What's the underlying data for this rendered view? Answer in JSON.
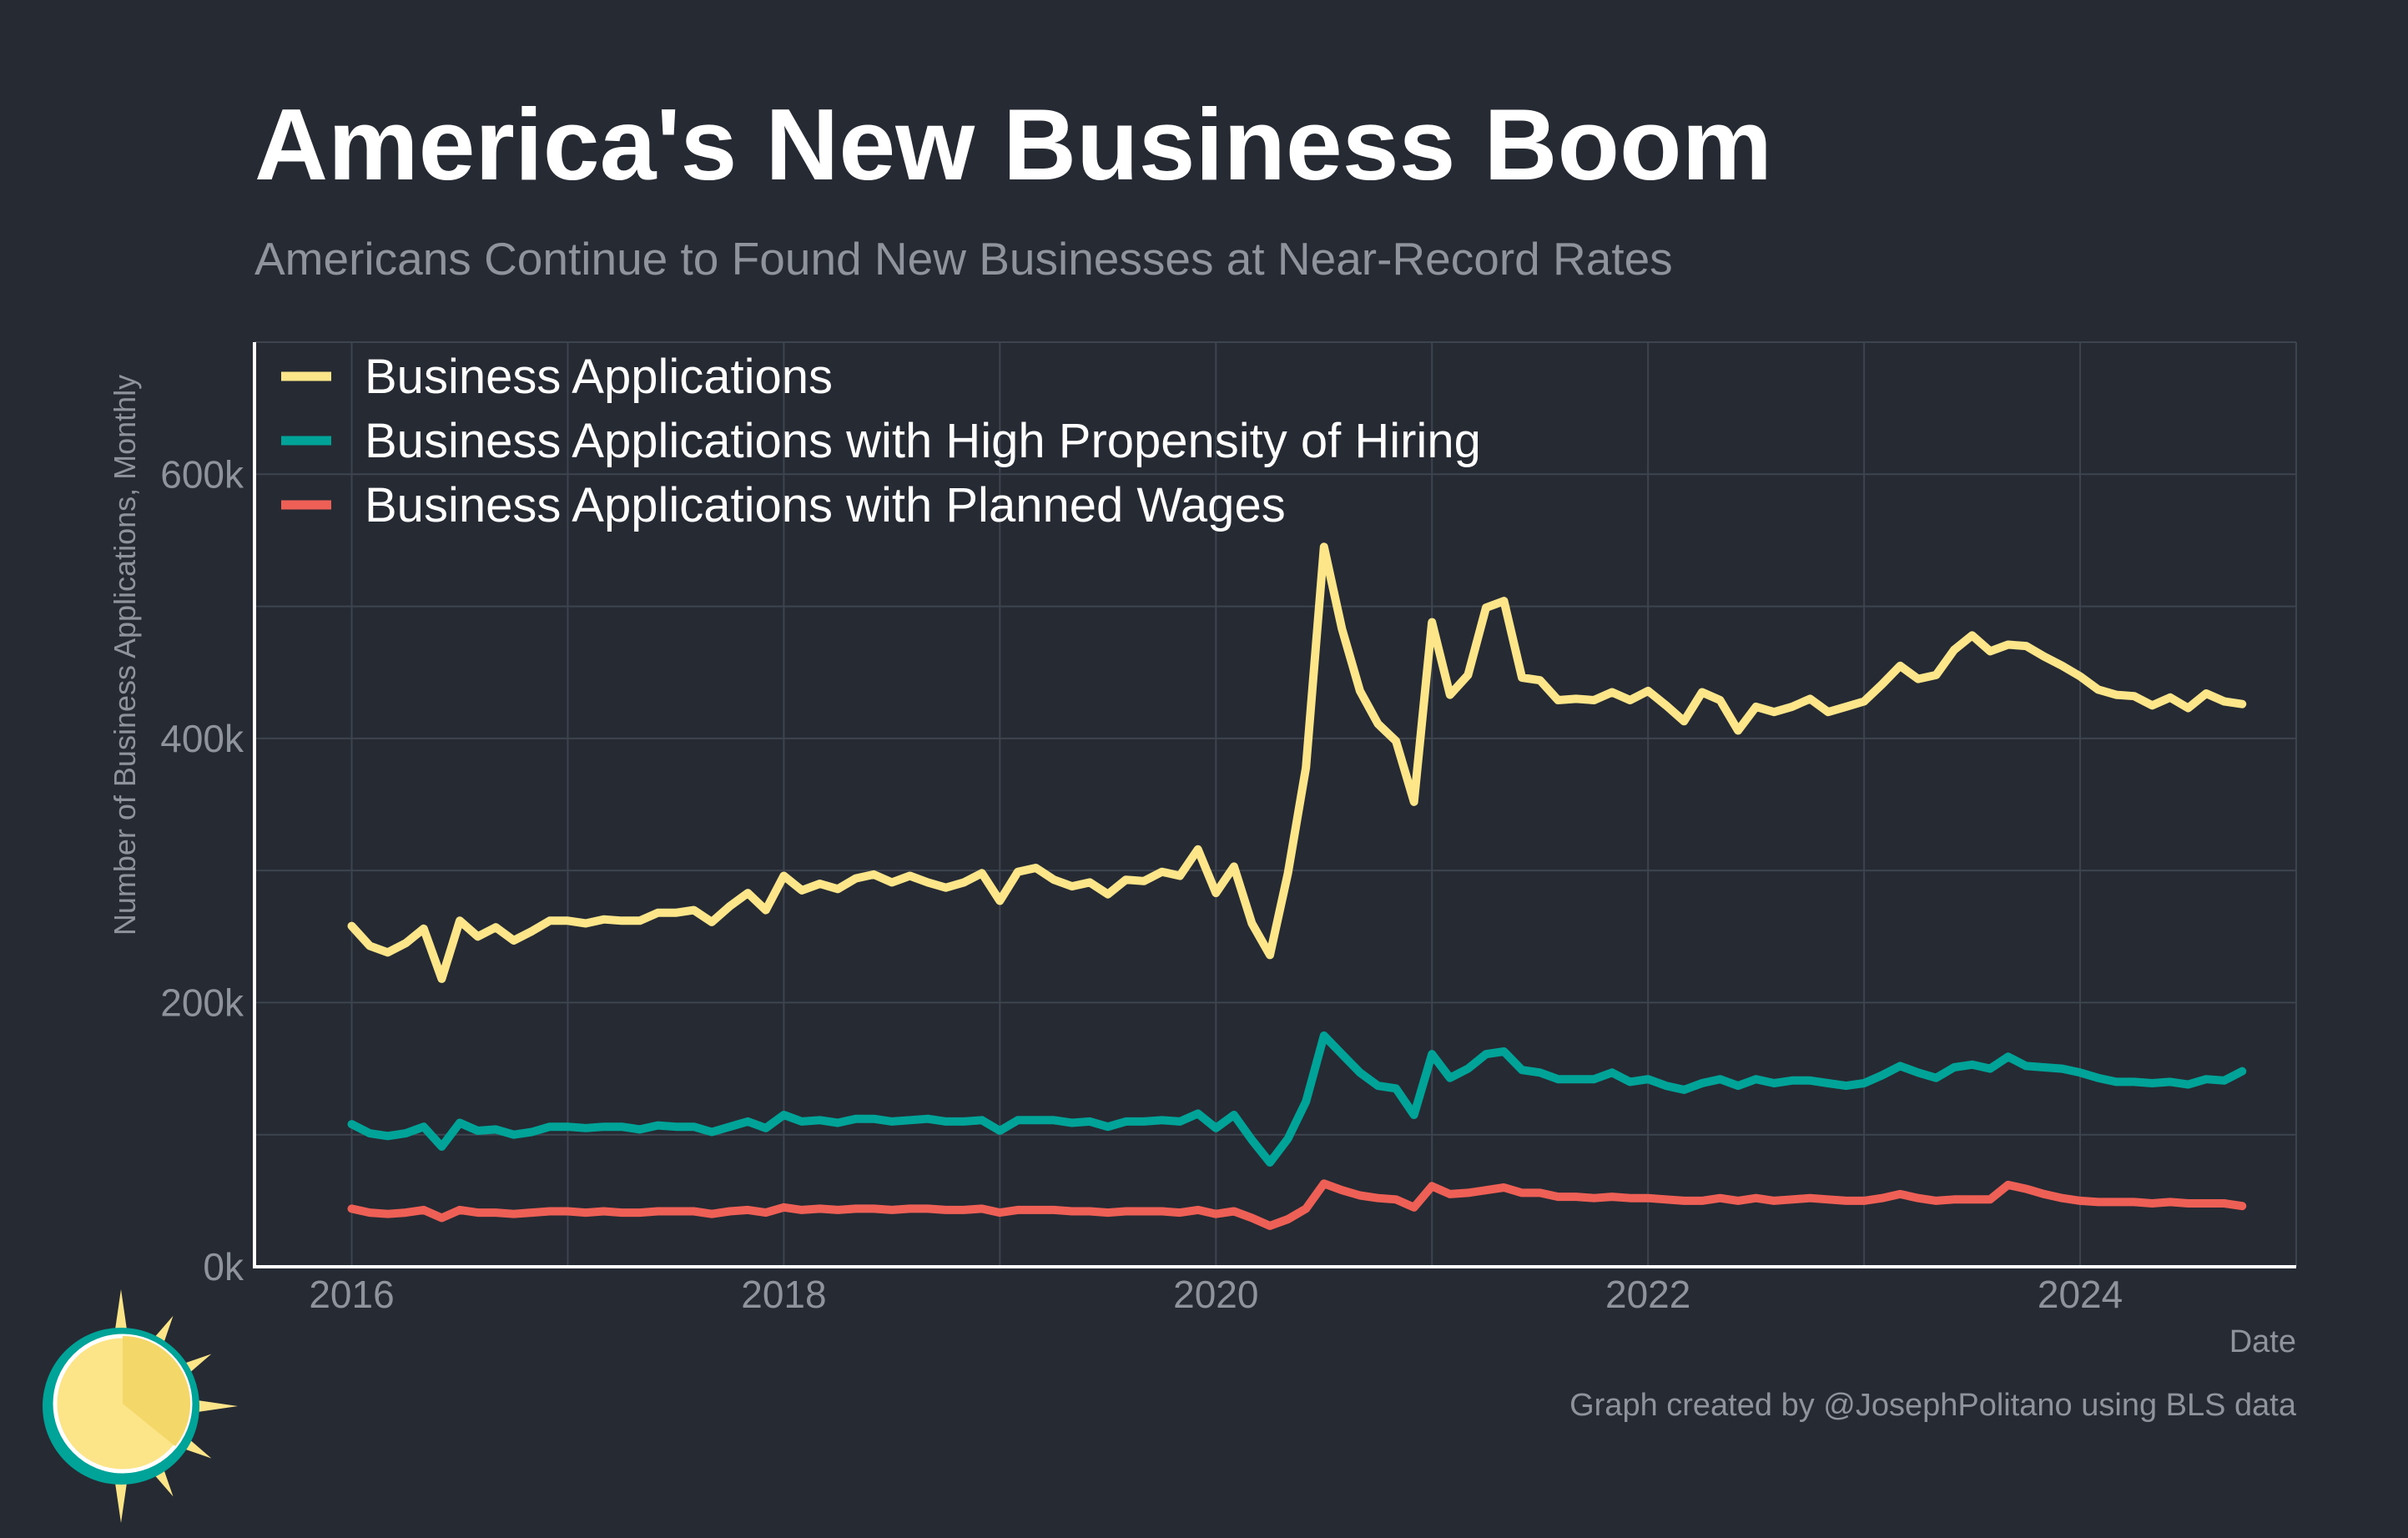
{
  "header": {
    "title": "America's New Business Boom",
    "subtitle": "Americans Continue to Found New Businesses at Near-Record Rates"
  },
  "footer": {
    "caption": "Graph created by @JosephPolitano using BLS data"
  },
  "colors": {
    "background": "#252a33",
    "grid": "#3e444e",
    "axis": "#ffffff",
    "tick_text": "#8f949c",
    "business_applications": "#fde68a",
    "high_propensity": "#00a398",
    "planned_wages": "#ee6055",
    "logo_sun": "#fce489",
    "logo_ring": "#00a398"
  },
  "logo": {
    "icon": "sun-logo-icon"
  },
  "chart_data": {
    "type": "line",
    "title": "America's New Business Boom",
    "subtitle": "Americans Continue to Found New Businesses at Near-Record Rates",
    "xlabel": "Date",
    "ylabel": "Number of Business Applications, Monthly",
    "x_start": "2016-01",
    "x_frequency": "monthly",
    "xlim": [
      2015.55,
      2025.0
    ],
    "ylim": [
      0,
      700000
    ],
    "x_ticks": [
      2016,
      2018,
      2020,
      2022,
      2024
    ],
    "x_tick_labels": [
      "2016",
      "2018",
      "2020",
      "2022",
      "2024"
    ],
    "y_ticks": [
      0,
      200000,
      400000,
      600000
    ],
    "y_tick_labels": [
      "0k",
      "200k",
      "400k",
      "600k"
    ],
    "grid": true,
    "legend_position": "top-left",
    "series": [
      {
        "name": "Business Applications",
        "color": "#fde68a",
        "values": [
          258000,
          243000,
          238000,
          245000,
          256000,
          218000,
          262000,
          250000,
          257000,
          247000,
          254000,
          262000,
          262000,
          260000,
          263000,
          262000,
          262000,
          268000,
          268000,
          270000,
          261000,
          273000,
          283000,
          270000,
          296000,
          285000,
          290000,
          286000,
          294000,
          297000,
          291000,
          296000,
          291000,
          287000,
          291000,
          298000,
          277000,
          299000,
          302000,
          293000,
          288000,
          291000,
          282000,
          293000,
          292000,
          299000,
          296000,
          316000,
          283000,
          303000,
          260000,
          236000,
          298000,
          378000,
          545000,
          483000,
          436000,
          411000,
          398000,
          352000,
          488000,
          433000,
          448000,
          499000,
          504000,
          446000,
          444000,
          429000,
          430000,
          429000,
          435000,
          429000,
          436000,
          425000,
          413000,
          435000,
          429000,
          406000,
          424000,
          420000,
          424000,
          430000,
          420000,
          424000,
          428000,
          441000,
          455000,
          445000,
          448000,
          467000,
          478000,
          466000,
          471000,
          470000,
          462000,
          455000,
          447000,
          437000,
          433000,
          432000,
          425000,
          431000,
          423000,
          434000,
          428000,
          426000
        ]
      },
      {
        "name": "Business Applications with High Propensity of Hiring",
        "color": "#00a398",
        "values": [
          108000,
          101000,
          99000,
          101000,
          106000,
          91000,
          109000,
          103000,
          104000,
          100000,
          102000,
          106000,
          106000,
          105000,
          106000,
          106000,
          104000,
          107000,
          106000,
          106000,
          102000,
          106000,
          110000,
          105000,
          115000,
          110000,
          111000,
          109000,
          112000,
          112000,
          110000,
          111000,
          112000,
          110000,
          110000,
          111000,
          103000,
          111000,
          111000,
          111000,
          109000,
          110000,
          106000,
          110000,
          110000,
          111000,
          110000,
          116000,
          105000,
          115000,
          96000,
          79000,
          97000,
          125000,
          175000,
          161000,
          147000,
          137000,
          135000,
          115000,
          161000,
          143000,
          150000,
          161000,
          163000,
          149000,
          147000,
          142000,
          142000,
          142000,
          147000,
          140000,
          142000,
          137000,
          134000,
          139000,
          142000,
          137000,
          142000,
          139000,
          141000,
          141000,
          139000,
          137000,
          139000,
          145000,
          152000,
          147000,
          143000,
          151000,
          153000,
          150000,
          159000,
          152000,
          151000,
          150000,
          147000,
          143000,
          140000,
          140000,
          139000,
          140000,
          138000,
          142000,
          141000,
          148000
        ]
      },
      {
        "name": "Business Applications with Planned Wages",
        "color": "#ee6055",
        "values": [
          44000,
          41000,
          40000,
          41000,
          43000,
          37000,
          43000,
          41000,
          41000,
          40000,
          41000,
          42000,
          42000,
          41000,
          42000,
          41000,
          41000,
          42000,
          42000,
          42000,
          40000,
          42000,
          43000,
          41000,
          45000,
          43000,
          44000,
          43000,
          44000,
          44000,
          43000,
          44000,
          44000,
          43000,
          43000,
          44000,
          41000,
          43000,
          43000,
          43000,
          42000,
          42000,
          41000,
          42000,
          42000,
          42000,
          41000,
          43000,
          40000,
          42000,
          37000,
          31000,
          36000,
          44000,
          63000,
          58000,
          54000,
          52000,
          51000,
          45000,
          61000,
          55000,
          56000,
          58000,
          60000,
          56000,
          56000,
          53000,
          53000,
          52000,
          53000,
          52000,
          52000,
          51000,
          50000,
          50000,
          52000,
          50000,
          52000,
          50000,
          51000,
          52000,
          51000,
          50000,
          50000,
          52000,
          55000,
          52000,
          50000,
          51000,
          51000,
          51000,
          62000,
          59000,
          55000,
          52000,
          50000,
          49000,
          49000,
          49000,
          48000,
          49000,
          48000,
          48000,
          48000,
          46000
        ]
      }
    ]
  }
}
